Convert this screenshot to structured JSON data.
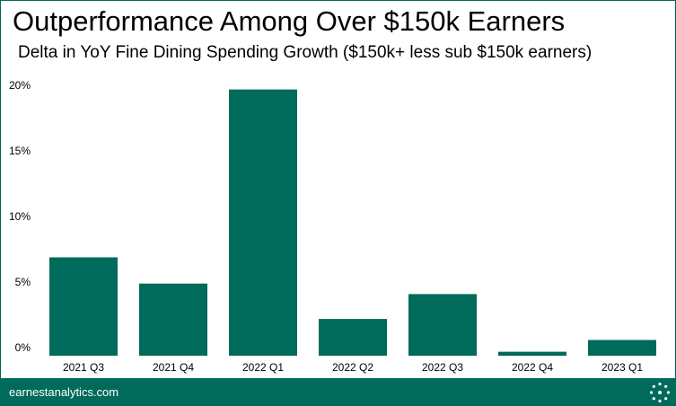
{
  "header": {
    "title": "Outperformance Among Over $150k Earners",
    "subtitle": "Delta in YoY Fine Dining Spending Growth ($150k+ less sub $150k earners)"
  },
  "footer": {
    "source": "earnestanalytics.com",
    "logo_icon": "earnest-dots-logo-icon"
  },
  "colors": {
    "bar": "#006a5b",
    "footer": "#006a5b",
    "text": "#000000"
  },
  "chart_data": {
    "type": "bar",
    "title": "Outperformance Among Over $150k Earners",
    "subtitle": "Delta in YoY Fine Dining Spending Growth ($150k+ less sub $150k earners)",
    "categories": [
      "2021 Q3",
      "2021 Q4",
      "2022 Q1",
      "2022 Q2",
      "2022 Q3",
      "2022 Q4",
      "2023 Q1"
    ],
    "values": [
      7.5,
      5.5,
      20.3,
      2.8,
      4.7,
      0.3,
      1.2
    ],
    "xlabel": "",
    "ylabel": "",
    "ylim": [
      0,
      21
    ],
    "yticks": [
      0,
      5,
      10,
      15,
      20
    ],
    "ytick_labels": [
      "0%",
      "5%",
      "10%",
      "15%",
      "20%"
    ],
    "grid": false,
    "legend": "none"
  }
}
